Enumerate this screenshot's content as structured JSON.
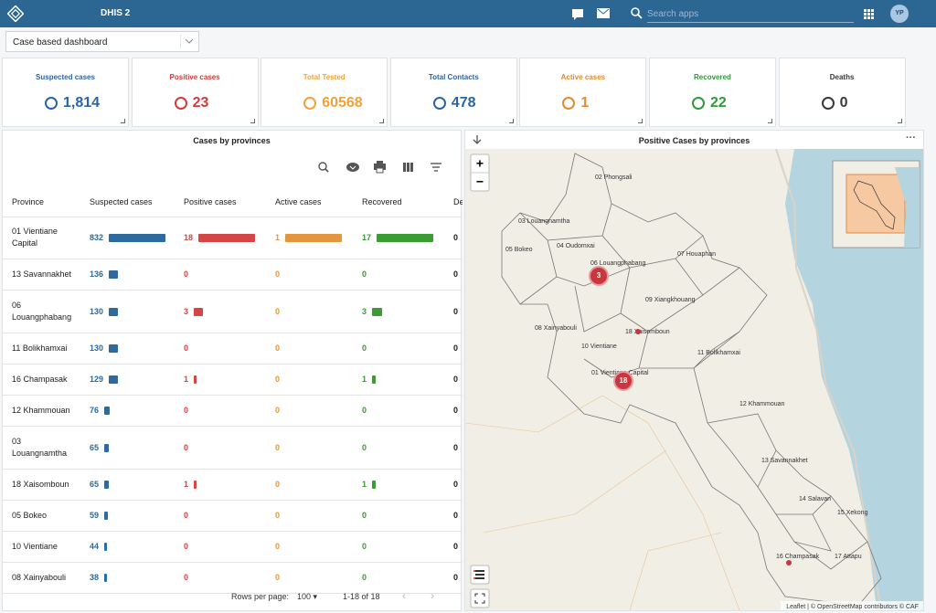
{
  "header": {
    "app_title": "DHIS 2",
    "search_placeholder": "Search apps",
    "user_initials": "YP"
  },
  "dashboard_selector": "Case based dashboard",
  "kpis": [
    {
      "label": "Suspected cases",
      "value": "1,814",
      "color": "#2a64a8"
    },
    {
      "label": "Positive cases",
      "value": "23",
      "color": "#d23b3b"
    },
    {
      "label": "Total Tested",
      "value": "60568",
      "color": "#f0a23a"
    },
    {
      "label": "Total Contacts",
      "value": "478",
      "color": "#2a64a8"
    },
    {
      "label": "Active cases",
      "value": "1",
      "color": "#e38a2c"
    },
    {
      "label": "Recovered",
      "value": "22",
      "color": "#2f9a3a"
    },
    {
      "label": "Deaths",
      "value": "0",
      "color": "#3a3a3a"
    }
  ],
  "table": {
    "title": "Cases by provinces",
    "columns": [
      "Province",
      "Suspected cases",
      "Positive cases",
      "Active cases",
      "Recovered",
      "Deaths"
    ],
    "bar_colors": [
      "#2c6aa0",
      "#d64545",
      "#e3963e",
      "#3b9c34"
    ],
    "rows": [
      [
        "01 Vientiane Capital",
        832,
        18,
        1,
        17,
        0
      ],
      [
        "13 Savannakhet",
        136,
        0,
        0,
        0,
        0
      ],
      [
        "06 Louangphabang",
        130,
        3,
        0,
        3,
        0
      ],
      [
        "11 Bolikhamxai",
        130,
        0,
        0,
        0,
        0
      ],
      [
        "16 Champasak",
        129,
        1,
        0,
        1,
        0
      ],
      [
        "12 Khammouan",
        76,
        0,
        0,
        0,
        0
      ],
      [
        "03 Louangnamtha",
        65,
        0,
        0,
        0,
        0
      ],
      [
        "18 Xaisomboun",
        65,
        1,
        0,
        1,
        0
      ],
      [
        "05 Bokeo",
        59,
        0,
        0,
        0,
        0
      ],
      [
        "10 Vientiane",
        44,
        0,
        0,
        0,
        0
      ],
      [
        "08 Xainyabouli",
        38,
        0,
        0,
        0,
        0
      ]
    ],
    "rows_per_page_label": "Rows per page:",
    "rows_per_page": "100",
    "range": "1-18 of 18"
  },
  "map": {
    "title": "Positive Cases by provinces",
    "provinces": [
      "02 Phongsali",
      "03 Louangnamtha",
      "05 Bokeo",
      "04 Oudomxai",
      "06 Louangphabang",
      "07 Houaphan",
      "09 Xiangkhouang",
      "08 Xainyabouli",
      "18 Xaisomboun",
      "10 Vientiane",
      "11 Bolikhamxai",
      "01 Vientiane Capital",
      "12 Khammouan",
      "13 Savannakhet",
      "14 Salavan",
      "15 Xekong",
      "16 Champasak",
      "17 Attapu"
    ],
    "clusters": [
      3,
      18
    ],
    "zoom_in": "+",
    "zoom_out": "−",
    "attribution": "Leaflet | © OpenStreetMap contributors © CAF"
  }
}
